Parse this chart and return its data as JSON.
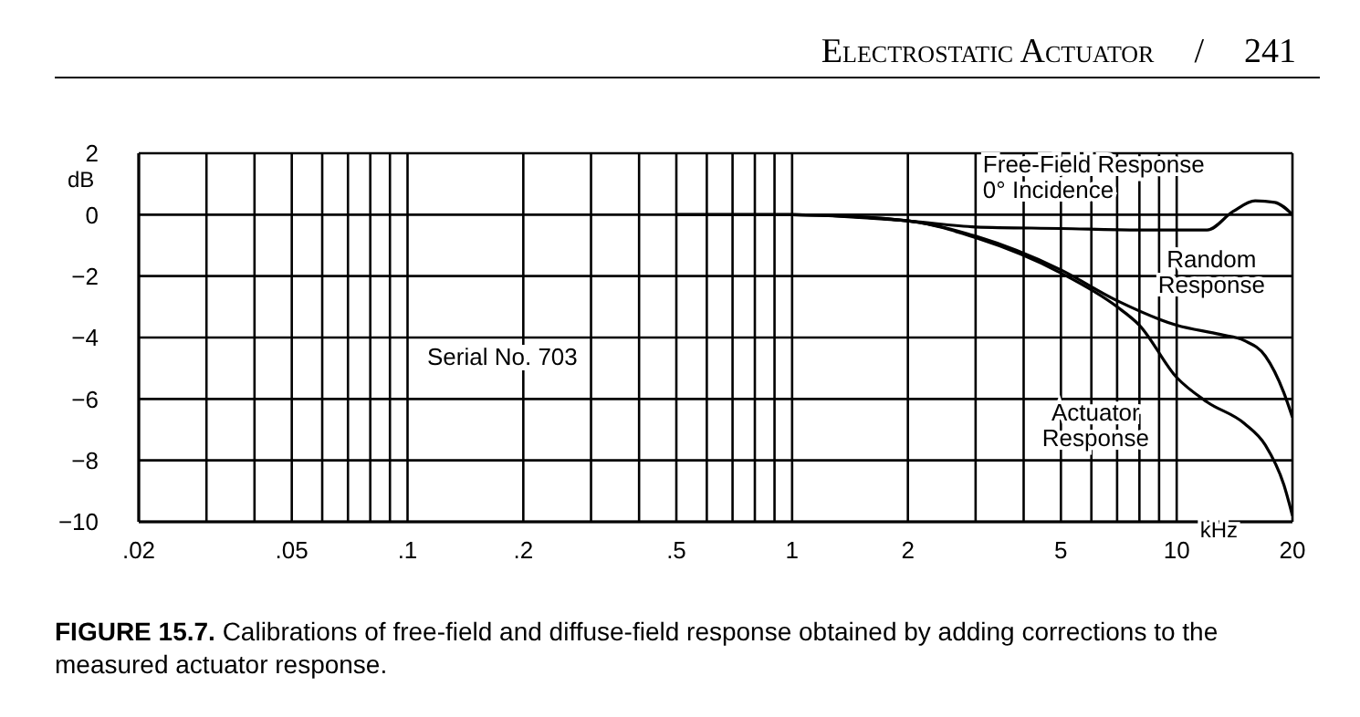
{
  "chart_data": {
    "type": "line",
    "title": "FIGURE 15.7.",
    "subtitle": "Calibrations of free-field and diffuse-field response obtained by adding corrections to the measured actuator response.",
    "xlabel": "kHz",
    "ylabel": "dB",
    "annotations": [
      "Electrostatic Actuator",
      "/",
      "241",
      "Serial No. 703"
    ],
    "log": "x",
    "xlim": [
      0.02,
      20
    ],
    "ylim": [
      -10,
      2
    ],
    "xticks": [
      {
        "value": 0.02,
        "label": ".02"
      },
      {
        "value": 0.03,
        "label": null
      },
      {
        "value": 0.04,
        "label": null
      },
      {
        "value": 0.05,
        "label": ".05"
      },
      {
        "value": 0.06,
        "label": null
      },
      {
        "value": 0.07,
        "label": null
      },
      {
        "value": 0.08,
        "label": null
      },
      {
        "value": 0.09,
        "label": null
      },
      {
        "value": 0.1,
        "label": ".1"
      },
      {
        "value": 0.2,
        "label": ".2"
      },
      {
        "value": 0.3,
        "label": null
      },
      {
        "value": 0.4,
        "label": null
      },
      {
        "value": 0.5,
        "label": ".5"
      },
      {
        "value": 0.6,
        "label": null
      },
      {
        "value": 0.7,
        "label": null
      },
      {
        "value": 0.8,
        "label": null
      },
      {
        "value": 0.9,
        "label": null
      },
      1,
      2,
      {
        "value": 3,
        "label": null
      },
      {
        "value": 4,
        "label": null
      },
      5,
      {
        "value": 6,
        "label": null
      },
      {
        "value": 7,
        "label": null
      },
      {
        "value": 8,
        "label": null
      },
      {
        "value": 9,
        "label": null
      },
      10,
      20
    ],
    "yticks": [
      2,
      0,
      -2,
      -4,
      -6,
      -8,
      -10
    ],
    "grid": true,
    "legend": false,
    "marker": "none",
    "line_style": "solid",
    "series": [
      {
        "name": "Free-Field Response\n0° Incidence",
        "color": "#000000",
        "x": [
          0.5,
          1,
          2,
          3,
          5,
          8,
          10,
          12,
          14,
          16,
          18,
          20
        ],
        "values": [
          0,
          0,
          -0.2,
          -0.4,
          -0.45,
          -0.5,
          -0.5,
          -0.5,
          0.1,
          0.45,
          0.4,
          0
        ]
      },
      {
        "name": "Random\nResponse",
        "color": "#000000",
        "x": [
          0.5,
          1,
          2,
          3,
          5,
          7,
          10,
          13,
          15,
          17,
          19,
          20
        ],
        "values": [
          0,
          0,
          -0.2,
          -0.7,
          -1.8,
          -2.8,
          -3.6,
          -3.9,
          -4.1,
          -4.6,
          -5.8,
          -6.6
        ]
      },
      {
        "name": "Actuator\nResponse",
        "color": "#000000",
        "x": [
          0.5,
          1,
          2,
          3,
          5,
          7,
          8,
          10,
          12,
          15,
          17,
          19,
          20
        ],
        "values": [
          0,
          0,
          -0.2,
          -0.75,
          -1.9,
          -3.0,
          -3.6,
          -5.3,
          -6.1,
          -6.8,
          -7.5,
          -8.8,
          -9.8
        ]
      }
    ]
  }
}
